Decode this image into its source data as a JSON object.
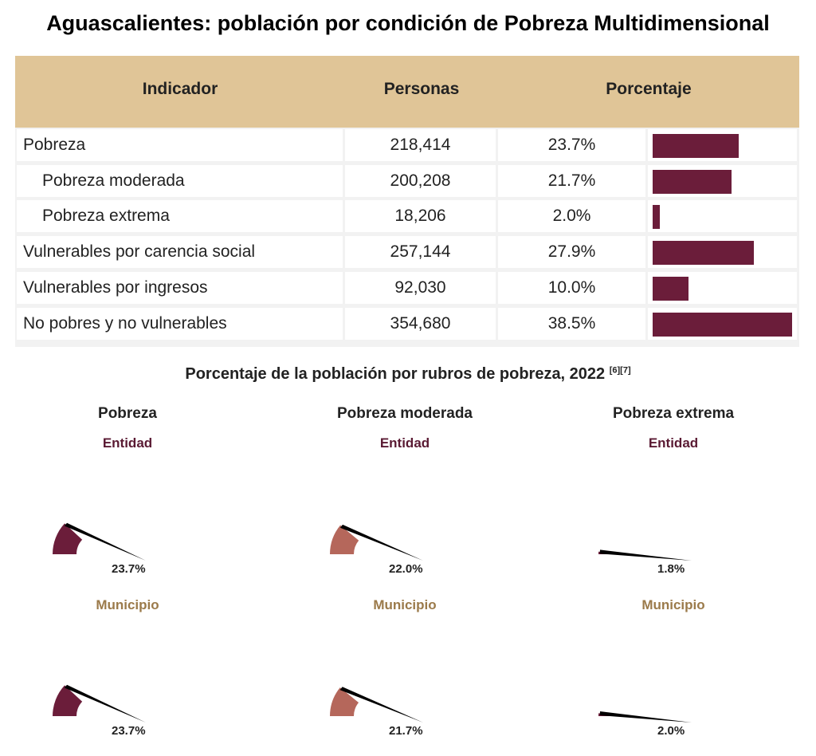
{
  "title": "Aguascalientes: población por condición de Pobreza Multidimensional",
  "table": {
    "headers": [
      "Indicador",
      "Personas",
      "Porcentaje"
    ],
    "rows": [
      {
        "label": "Pobreza",
        "personas": "218,414",
        "porcentaje": "23.7%",
        "value": 23.7
      },
      {
        "label": "Pobreza moderada",
        "personas": "200,208",
        "porcentaje": "21.7%",
        "value": 21.7
      },
      {
        "label": "Pobreza extrema",
        "personas": "18,206",
        "porcentaje": "2.0%",
        "value": 2.0
      },
      {
        "label": "Vulnerables por carencia social",
        "personas": "257,144",
        "porcentaje": "27.9%",
        "value": 27.9
      },
      {
        "label": "Vulnerables por ingresos",
        "personas": "92,030",
        "porcentaje": "10.0%",
        "value": 10.0
      },
      {
        "label": "No pobres y no vulnerables",
        "personas": "354,680",
        "porcentaje": "38.5%",
        "value": 38.5
      }
    ]
  },
  "gauges_title": "Porcentaje de la población por rubros de pobreza, 2022",
  "gauges_refs": "[6][7]",
  "gauges": [
    {
      "name": "Pobreza",
      "entidad_label": "Entidad",
      "municipio_label": "Municipio",
      "entidad_text": "23.7%",
      "municipio_text": "23.7%",
      "entidad": 23.7,
      "municipio": 23.7,
      "color": "#6b1d3a"
    },
    {
      "name": "Pobreza moderada",
      "entidad_label": "Entidad",
      "municipio_label": "Municipio",
      "entidad_text": "22.0%",
      "municipio_text": "21.7%",
      "entidad": 22.0,
      "municipio": 21.7,
      "color": "#b5675b"
    },
    {
      "name": "Pobreza extrema",
      "entidad_label": "Entidad",
      "municipio_label": "Municipio",
      "entidad_text": "1.8%",
      "municipio_text": "2.0%",
      "entidad": 1.8,
      "municipio": 2.0,
      "color": "#6b1d3a"
    }
  ],
  "chart_data": [
    {
      "type": "bar",
      "title": "Aguascalientes: población por condición de Pobreza Multidimensional",
      "categories": [
        "Pobreza",
        "Pobreza moderada",
        "Pobreza extrema",
        "Vulnerables por carencia social",
        "Vulnerables por ingresos",
        "No pobres y no vulnerables"
      ],
      "values": [
        23.7,
        21.7,
        2.0,
        27.9,
        10.0,
        38.5
      ],
      "persons": [
        218414,
        200208,
        18206,
        257144,
        92030,
        354680
      ],
      "color": "#6b1d3a"
    },
    {
      "type": "gauge",
      "title": "Porcentaje de la población por rubros de pobreza, 2022",
      "categories": [
        "Pobreza",
        "Pobreza moderada",
        "Pobreza extrema"
      ],
      "series": [
        {
          "name": "Entidad",
          "values": [
            23.7,
            22.0,
            1.8
          ]
        },
        {
          "name": "Municipio",
          "values": [
            23.7,
            21.7,
            2.0
          ]
        }
      ]
    }
  ]
}
